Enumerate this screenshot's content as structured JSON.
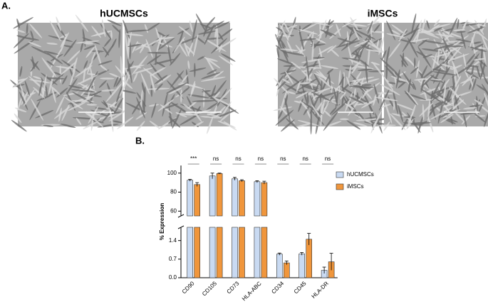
{
  "panel_a": {
    "label": "A.",
    "groups": [
      {
        "title": "hUCMSCs"
      },
      {
        "title": "iMSCs"
      }
    ]
  },
  "panel_b": {
    "label": "B."
  },
  "chart_data": {
    "type": "bar",
    "y_label": "% Expression",
    "categories": [
      "CD90",
      "CD105",
      "CD73",
      "HLA-ABC",
      "CD34",
      "CD45",
      "HLA-DR"
    ],
    "annotations": [
      "***",
      "ns",
      "ns",
      "ns",
      "ns",
      "ns",
      "ns"
    ],
    "segments": [
      {
        "ylim": [
          0,
          1.9
        ],
        "yticks": [
          {
            "value": 0,
            "label": "0.0"
          },
          0.7,
          1.4
        ]
      },
      {
        "ylim": [
          55,
          108
        ],
        "yticks": [
          60,
          80,
          100
        ]
      }
    ],
    "legend": "upper right",
    "series": [
      {
        "name": "hUCMSCs",
        "color": "#c9daf2",
        "values": [
          92.5,
          97,
          94,
          91,
          0.89,
          0.9,
          0.28
        ],
        "errors": [
          1,
          3,
          1.5,
          1,
          0.04,
          0.05,
          0.12
        ]
      },
      {
        "name": "iMSCs",
        "color": "#f0963c",
        "values": [
          88,
          99.5,
          92,
          90,
          0.56,
          1.45,
          0.6
        ],
        "errors": [
          2,
          0.5,
          1,
          1.5,
          0.07,
          0.22,
          0.32
        ]
      }
    ]
  }
}
